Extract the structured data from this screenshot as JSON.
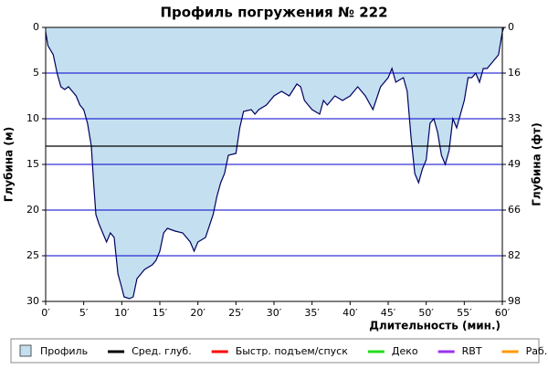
{
  "chart_data": {
    "type": "area",
    "title": "Профиль погружения № 222",
    "y_label": "Глубина (м)",
    "y2_label": "Глубина (фт)",
    "x_label": "Длительность (мин.)",
    "invert_y": true,
    "grid": true,
    "x": [
      0,
      0.3,
      1,
      1.5,
      2,
      2.5,
      3,
      3.5,
      4,
      4.5,
      5,
      5.5,
      6,
      6.3,
      6.6,
      7,
      7.5,
      8,
      8.5,
      9,
      9.5,
      10,
      10.3,
      11,
      11.5,
      12,
      12.5,
      13,
      14,
      14.5,
      15,
      15.5,
      16,
      17,
      18,
      19,
      19.5,
      20,
      21,
      22,
      22.5,
      23,
      23.5,
      24,
      25,
      25.5,
      26,
      27,
      27.5,
      28,
      29,
      30,
      31,
      32,
      33,
      33.5,
      34,
      35,
      36,
      36.5,
      37,
      38,
      39,
      40,
      41,
      42,
      43,
      44,
      45,
      45.5,
      46,
      47,
      47.5,
      48,
      48.5,
      49,
      49.5,
      50,
      50.5,
      51,
      51.5,
      52,
      52.5,
      53,
      53.5,
      54,
      55,
      55.5,
      56,
      56.5,
      57,
      57.5,
      58,
      59,
      59.5,
      60,
      60.2
    ],
    "series": [
      {
        "name": "Профиль",
        "color": "#c4e0f0",
        "line_color": "#000060",
        "values": [
          0.5,
          2,
          3,
          5,
          6.5,
          6.8,
          6.5,
          7,
          7.5,
          8.5,
          9,
          10.5,
          13,
          17,
          20.5,
          21.5,
          22.5,
          23.5,
          22.5,
          23,
          27,
          28.5,
          29.5,
          29.7,
          29.5,
          27.5,
          27,
          26.5,
          26,
          25.5,
          24.5,
          22.5,
          22,
          22.3,
          22.5,
          23.5,
          24.5,
          23.5,
          23,
          20.5,
          18.5,
          17,
          16,
          14,
          13.8,
          11,
          9.2,
          9,
          9.5,
          9,
          8.5,
          7.5,
          7,
          7.5,
          6.2,
          6.5,
          8,
          9,
          9.5,
          8,
          8.5,
          7.5,
          8,
          7.5,
          6.5,
          7.5,
          9,
          6.5,
          5.5,
          4.5,
          6,
          5.5,
          7,
          12,
          16,
          17,
          15.5,
          14.5,
          10.5,
          10,
          11.5,
          14,
          15,
          13.5,
          10,
          11,
          8,
          5.5,
          5.5,
          5,
          6,
          4.5,
          4.5,
          3.5,
          3,
          0.5,
          0
        ]
      }
    ],
    "avg_depth": 13,
    "avg_color": "#000000",
    "legend": [
      {
        "name": "Сред. глуб.",
        "color": "#000000"
      },
      {
        "name": "Быстр. подъем/спуск",
        "color": "#ff0000"
      },
      {
        "name": "Деко",
        "color": "#22dd22"
      },
      {
        "name": "RBT",
        "color": "#9933ee"
      },
      {
        "name": "Раб.",
        "color": "#ff9900"
      }
    ],
    "grid_color": "#0000cc",
    "xlim": [
      0,
      60
    ],
    "ylim": [
      0,
      30
    ],
    "y2lim": [
      0,
      98.4
    ],
    "xticks": [
      {
        "value": 0,
        "label": "0′"
      },
      {
        "value": 5,
        "label": "5′"
      },
      {
        "value": 10,
        "label": "10′"
      },
      {
        "value": 15,
        "label": "15′"
      },
      {
        "value": 20,
        "label": "20′"
      },
      {
        "value": 25,
        "label": "25′"
      },
      {
        "value": 30,
        "label": "30′"
      },
      {
        "value": 35,
        "label": "35′"
      },
      {
        "value": 40,
        "label": "40′"
      },
      {
        "value": 45,
        "label": "45′"
      },
      {
        "value": 50,
        "label": "50′"
      },
      {
        "value": 55,
        "label": "55′"
      },
      {
        "value": 60,
        "label": "60′"
      }
    ],
    "yticks": [
      0,
      5,
      10,
      15,
      20,
      25,
      30
    ],
    "y2ticks": [
      0,
      {
        "value": 16.4,
        "label": "16"
      },
      {
        "value": 32.8,
        "label": "33"
      },
      {
        "value": 49.2,
        "label": "49"
      },
      {
        "value": 65.6,
        "label": "66"
      },
      {
        "value": 82,
        "label": "82"
      },
      {
        "value": 98.4,
        "label": "98"
      }
    ]
  }
}
